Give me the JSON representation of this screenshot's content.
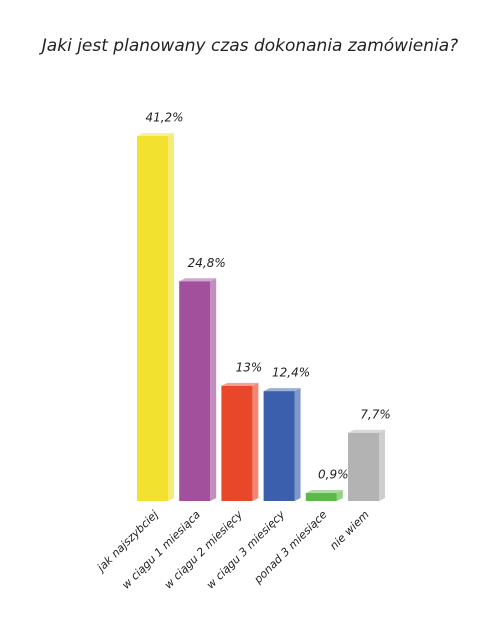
{
  "chart_data": {
    "type": "bar",
    "title": "Jaki jest planowany czas dokonania zamówienia?",
    "categories": [
      "jak najszybciej",
      "w ciągu 1 miesiąca",
      "w ciągu 2 miesięcy",
      "w ciągu 3 miesięcy",
      "ponad 3 miesiące",
      "nie wiem"
    ],
    "values": [
      41.2,
      24.8,
      13,
      12.4,
      0.9,
      7.7
    ],
    "value_labels": [
      "41,2%",
      "24,8%",
      "13%",
      "12,4%",
      "0,9%",
      "7,7%"
    ],
    "colors": [
      "#f3e130",
      "#a3509c",
      "#e8472a",
      "#3b5fad",
      "#5ab947",
      "#b3b3b3"
    ]
  }
}
